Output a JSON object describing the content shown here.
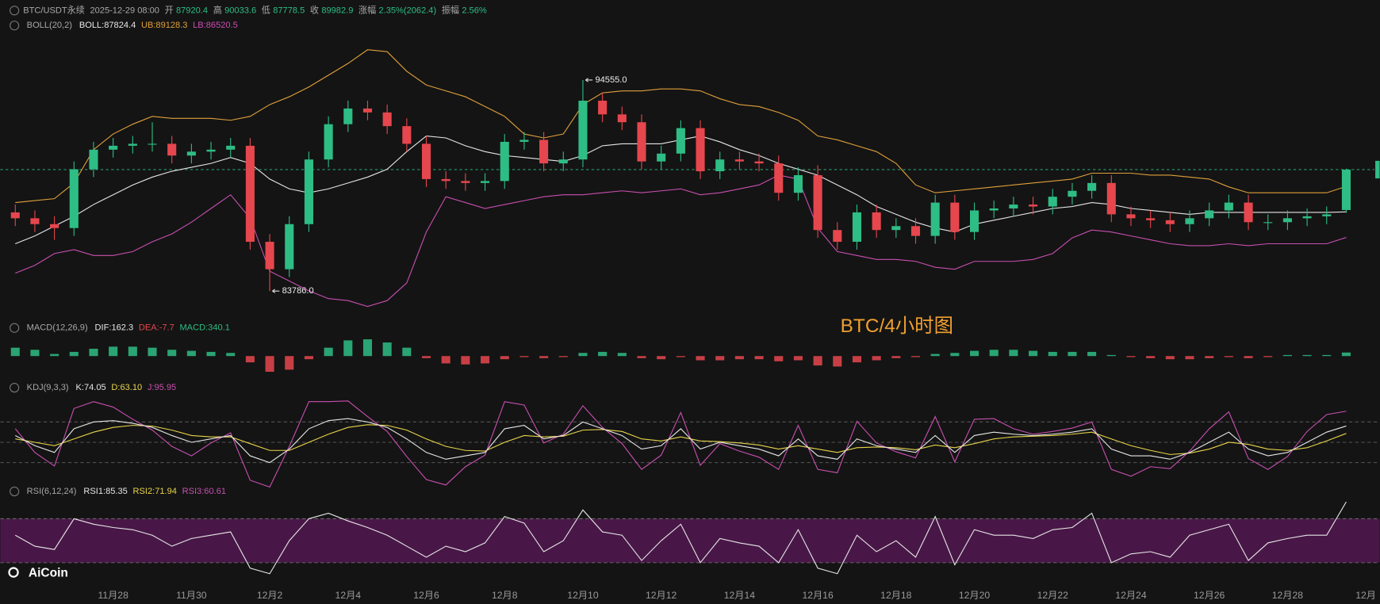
{
  "header": {
    "symbol": "BTC/USDT永续",
    "time": "2025-12-29 08:00",
    "open_label": "开",
    "high_label": "高",
    "low_label": "低",
    "close_label": "收",
    "change_label": "涨幅",
    "change": "2.35%(2062.4)",
    "amplitude_label": "振幅",
    "amplitude": "2.56%"
  },
  "chart_data": {
    "type": "candlestick",
    "categories": [
      null,
      null,
      null,
      null,
      null,
      "11月28",
      null,
      null,
      null,
      "11月30",
      null,
      null,
      null,
      "12月2",
      null,
      null,
      null,
      "12月4",
      null,
      null,
      null,
      "12月6",
      null,
      null,
      null,
      "12月8",
      null,
      null,
      null,
      "12月10",
      null,
      null,
      null,
      "12月12",
      null,
      null,
      null,
      "12月14",
      null,
      null,
      null,
      "12月16",
      null,
      null,
      null,
      "12月18",
      null,
      null,
      null,
      "12月20",
      null,
      null,
      null,
      "12月22",
      null,
      null,
      null,
      "12月24",
      null,
      null,
      null,
      "12月26",
      null,
      null,
      null,
      "12月28",
      null,
      null,
      null,
      "12月"
    ],
    "open": [
      87800,
      87500,
      87200,
      87000,
      90000,
      91000,
      91200,
      91300,
      91300,
      90700,
      90900,
      91000,
      91200,
      86300,
      84900,
      87200,
      90500,
      92300,
      93100,
      92900,
      92200,
      91300,
      89500,
      89400,
      89300,
      89400,
      91400,
      91500,
      90300,
      90500,
      93500,
      92800,
      92400,
      90400,
      90800,
      92100,
      89900,
      90500,
      90400,
      90300,
      88800,
      89700,
      86900,
      86300,
      87800,
      86900,
      87100,
      86600,
      88300,
      86800,
      87900,
      88000,
      88200,
      88100,
      88600,
      88900,
      89300,
      87700,
      87500,
      87400,
      87200,
      87500,
      87900,
      88300,
      87300,
      87300,
      87500,
      87600,
      87920.4,
      null
    ],
    "high": [
      88200,
      87900,
      87600,
      90400,
      91400,
      91600,
      91700,
      92400,
      91700,
      91300,
      91400,
      91600,
      91600,
      86700,
      87600,
      90900,
      92700,
      93500,
      93500,
      93300,
      92600,
      91700,
      89900,
      89800,
      89800,
      91800,
      91900,
      91900,
      90900,
      94555,
      93900,
      93200,
      92800,
      91200,
      92500,
      92500,
      90900,
      90900,
      90800,
      90700,
      90100,
      90200,
      87300,
      88200,
      88200,
      87500,
      87500,
      88700,
      88700,
      88300,
      88400,
      88600,
      88600,
      89000,
      89300,
      89700,
      89700,
      88100,
      87900,
      87800,
      87900,
      88300,
      88700,
      88700,
      87700,
      87900,
      88000,
      88100,
      90033.6,
      null
    ],
    "low": [
      87100,
      86800,
      86400,
      86600,
      89600,
      90600,
      90800,
      90900,
      90300,
      90300,
      90500,
      90600,
      85900,
      83786,
      84500,
      86800,
      90100,
      91900,
      92500,
      91800,
      90900,
      89100,
      89000,
      88900,
      88900,
      89000,
      91000,
      89900,
      89900,
      90100,
      92400,
      92000,
      90000,
      90000,
      90400,
      89500,
      89500,
      90000,
      89900,
      88400,
      88400,
      86500,
      85900,
      85900,
      86500,
      86500,
      86200,
      86200,
      86400,
      86400,
      87500,
      87600,
      87700,
      87700,
      88200,
      88500,
      87300,
      87100,
      87000,
      86800,
      86800,
      87100,
      87500,
      86900,
      86900,
      86900,
      87100,
      87200,
      87778.5,
      null
    ],
    "close": [
      87500,
      87200,
      87000,
      90000,
      91000,
      91200,
      91300,
      91300,
      90700,
      90900,
      91000,
      91200,
      86300,
      84900,
      87200,
      90500,
      92300,
      93100,
      92900,
      92200,
      91300,
      89500,
      89400,
      89300,
      89400,
      91400,
      91500,
      90300,
      90500,
      93500,
      92800,
      92400,
      90400,
      90800,
      92100,
      89900,
      90500,
      90400,
      90300,
      88800,
      89700,
      86900,
      86300,
      87800,
      86900,
      87100,
      86600,
      88300,
      86800,
      87900,
      88000,
      88200,
      88100,
      88600,
      88900,
      89300,
      87700,
      87500,
      87400,
      87200,
      87500,
      87900,
      88300,
      87300,
      87300,
      87500,
      87600,
      87700,
      89982.9,
      null
    ],
    "ylim": [
      82487,
      96843
    ],
    "up_color": "#2ebd85",
    "down_color": "#e6464d",
    "annotations": [
      {
        "value": 94555,
        "label": "94555.0"
      },
      {
        "value": 83786,
        "label": "83786.0"
      }
    ],
    "watermark": "BTC/4小时图",
    "brand": "AiCoin",
    "overlays": {
      "name": "BOLL(20,2)",
      "mid_label": "BOLL:",
      "upper_label": "UB:",
      "lower_label": "LB:",
      "upper_color": "#e0a03a",
      "mid_color": "#e6e6e6",
      "lower_color": "#c84fb0",
      "boll_upper": [
        88300,
        88400,
        88500,
        89300,
        91000,
        91800,
        92300,
        92700,
        92600,
        92600,
        92600,
        92500,
        92700,
        93300,
        93700,
        94200,
        94800,
        95400,
        96100,
        96000,
        95000,
        94300,
        94000,
        93700,
        93200,
        92700,
        91800,
        91600,
        91800,
        93300,
        93900,
        94000,
        94000,
        94100,
        94100,
        94000,
        93600,
        93300,
        93200,
        92900,
        92500,
        91700,
        91500,
        91200,
        90900,
        90300,
        89200,
        88800,
        88900,
        89000,
        89100,
        89200,
        89300,
        89400,
        89500,
        89800,
        89800,
        89800,
        89700,
        89700,
        89600,
        89500,
        89100,
        88800,
        88800,
        88800,
        88800,
        88800,
        89128.3,
        null
      ],
      "boll_mid": [
        86200,
        86600,
        87100,
        87600,
        88200,
        88700,
        89200,
        89600,
        89900,
        90100,
        90300,
        90600,
        90300,
        89500,
        89000,
        88800,
        89000,
        89300,
        89600,
        90000,
        90900,
        91700,
        91600,
        91200,
        90900,
        90700,
        90600,
        90500,
        90400,
        90700,
        91200,
        91300,
        91300,
        91300,
        91500,
        91700,
        91400,
        91000,
        90700,
        90300,
        90000,
        89700,
        89200,
        88700,
        88100,
        87700,
        87300,
        87000,
        86800,
        87200,
        87400,
        87600,
        87800,
        88000,
        88100,
        88300,
        88200,
        88000,
        87900,
        87800,
        87700,
        87800,
        87800,
        87800,
        87800,
        87800,
        87800,
        87800,
        87824.4,
        null
      ],
      "boll_lower": [
        84700,
        85100,
        85700,
        85900,
        85600,
        85600,
        85800,
        86300,
        86700,
        87300,
        88000,
        88700,
        87500,
        84800,
        84300,
        83800,
        83400,
        83300,
        83000,
        83300,
        84200,
        86800,
        88600,
        88300,
        88000,
        88200,
        88400,
        88600,
        88700,
        88700,
        88800,
        88900,
        88800,
        88900,
        89000,
        88700,
        88800,
        89000,
        89200,
        89700,
        89500,
        87000,
        85800,
        85600,
        85400,
        85400,
        85300,
        85000,
        84900,
        85300,
        85300,
        85300,
        85400,
        85700,
        86500,
        86900,
        86800,
        86600,
        86400,
        86200,
        86100,
        86100,
        86200,
        86100,
        86200,
        86200,
        86200,
        86200,
        86520.5,
        null
      ]
    },
    "indicators": {
      "macd": {
        "name": "MACD(12,26,9)",
        "dif_label": "DIF:",
        "dif": 162.3,
        "dea_label": "DEA:",
        "dea": -7.7,
        "macd_label": "MACD:",
        "ylim": [
          -2100,
          2100
        ],
        "values": [
          800,
          600,
          200,
          400,
          700,
          900,
          900,
          800,
          600,
          500,
          400,
          300,
          -600,
          -1500,
          -1300,
          -300,
          800,
          1500,
          1600,
          1300,
          800,
          -200,
          -700,
          -800,
          -700,
          -300,
          -100,
          -200,
          -100,
          300,
          400,
          300,
          -200,
          -300,
          -100,
          -400,
          -400,
          -300,
          -300,
          -500,
          -400,
          -900,
          -1000,
          -600,
          -400,
          -200,
          -100,
          200,
          300,
          500,
          600,
          600,
          500,
          400,
          400,
          400,
          100,
          -100,
          -200,
          -300,
          -300,
          -200,
          -100,
          -200,
          -100,
          100,
          100,
          100,
          340.1,
          null
        ]
      },
      "kdj": {
        "name": "KDJ(9,3,3)",
        "k_label": "K:",
        "d_label": "D:",
        "d_value_label": "63.10",
        "j_label": "J:",
        "ylim": [
          -20,
          115
        ],
        "levels": [
          20,
          50,
          80
        ],
        "k": [
          60,
          45,
          35,
          70,
          80,
          82,
          78,
          72,
          60,
          50,
          55,
          60,
          30,
          20,
          40,
          70,
          82,
          85,
          80,
          72,
          55,
          35,
          25,
          30,
          35,
          70,
          75,
          55,
          60,
          80,
          70,
          60,
          40,
          45,
          70,
          40,
          50,
          45,
          40,
          30,
          55,
          30,
          25,
          55,
          45,
          40,
          35,
          60,
          35,
          60,
          65,
          62,
          60,
          62,
          65,
          70,
          40,
          30,
          30,
          25,
          35,
          50,
          65,
          40,
          30,
          35,
          50,
          65,
          74.05,
          null
        ],
        "d": [
          55,
          50,
          45,
          55,
          65,
          72,
          75,
          74,
          68,
          60,
          58,
          58,
          48,
          38,
          38,
          50,
          62,
          72,
          76,
          75,
          68,
          55,
          44,
          38,
          37,
          50,
          60,
          58,
          59,
          68,
          69,
          66,
          55,
          52,
          58,
          52,
          51,
          49,
          46,
          40,
          45,
          40,
          35,
          42,
          43,
          42,
          39,
          46,
          42,
          48,
          55,
          58,
          59,
          60,
          62,
          65,
          55,
          45,
          38,
          32,
          34,
          40,
          50,
          47,
          40,
          38,
          42,
          52,
          63.1,
          null
        ],
        "j": [
          70,
          35,
          15,
          100,
          110,
          102,
          84,
          68,
          44,
          30,
          49,
          64,
          -6,
          -16,
          44,
          110,
          110,
          111,
          88,
          66,
          29,
          -5,
          -13,
          14,
          31,
          110,
          105,
          49,
          62,
          104,
          72,
          48,
          10,
          31,
          94,
          16,
          48,
          37,
          28,
          10,
          75,
          10,
          5,
          81,
          49,
          36,
          27,
          88,
          21,
          84,
          85,
          70,
          62,
          66,
          71,
          80,
          10,
          0,
          14,
          11,
          37,
          70,
          95,
          26,
          10,
          29,
          66,
          91,
          95.95,
          null
        ]
      },
      "rsi": {
        "name": "RSI(6,12,24)",
        "rsi1_label": "RSI1:",
        "rsi2_label": "RSI2:",
        "rsi2": 71.94,
        "rsi3_label": "RSI3:",
        "rsi3": 60.61,
        "ylim": [
          0,
          100
        ],
        "band": [
          30,
          70
        ],
        "rsi1": [
          55,
          45,
          42,
          70,
          65,
          62,
          60,
          55,
          45,
          52,
          55,
          58,
          25,
          20,
          50,
          70,
          75,
          68,
          62,
          55,
          45,
          35,
          45,
          40,
          48,
          72,
          66,
          40,
          50,
          78,
          58,
          55,
          32,
          50,
          65,
          30,
          52,
          48,
          45,
          30,
          60,
          25,
          20,
          55,
          40,
          50,
          35,
          72,
          28,
          60,
          55,
          55,
          52,
          60,
          62,
          75,
          30,
          38,
          40,
          35,
          55,
          60,
          65,
          32,
          48,
          52,
          55,
          55,
          85.35,
          null
        ]
      }
    }
  }
}
